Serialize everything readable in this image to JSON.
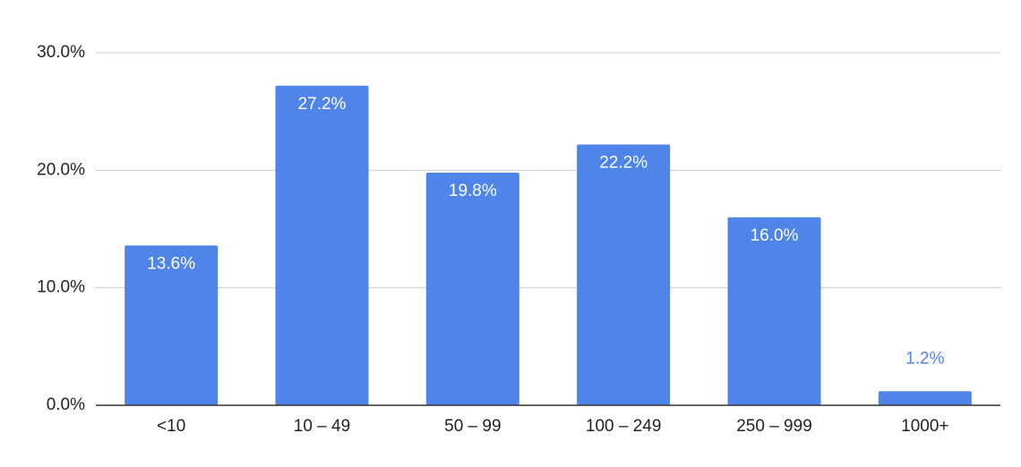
{
  "chart_data": {
    "type": "bar",
    "categories": [
      "<10",
      "10 – 49",
      "50 – 99",
      "100 – 249",
      "250 – 999",
      "1000+"
    ],
    "values": [
      13.6,
      27.2,
      19.8,
      22.2,
      16.0,
      1.2
    ],
    "value_labels": [
      "13.6%",
      "27.2%",
      "19.8%",
      "22.2%",
      "16.0%",
      "1.2%"
    ],
    "color": "#4f84e8",
    "ylim": [
      0,
      30
    ],
    "yticks": [
      {
        "value": 0,
        "label": "0.0%"
      },
      {
        "value": 10,
        "label": "10.0%"
      },
      {
        "value": 20,
        "label": "20.0%"
      },
      {
        "value": 30,
        "label": "30.0%"
      }
    ],
    "grid": true
  }
}
